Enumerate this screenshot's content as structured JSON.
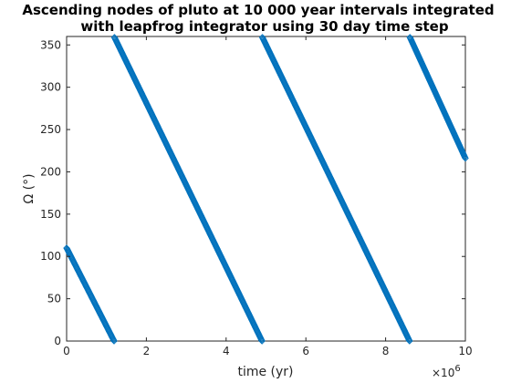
{
  "chart_data": {
    "type": "scatter",
    "title": [
      "Ascending nodes of pluto at 10 000 year intervals integrated",
      "with leapfrog integrator using 30 day time step"
    ],
    "xlabel": "time (yr)",
    "ylabel": "Ω (°)",
    "x_exponent_label": "×10",
    "x_exponent_power": "6",
    "xlim": [
      0,
      10
    ],
    "ylim": [
      0,
      360
    ],
    "xticks": [
      "0",
      "2",
      "4",
      "6",
      "8",
      "10"
    ],
    "yticks": [
      "0",
      "50",
      "100",
      "150",
      "200",
      "250",
      "300",
      "350"
    ],
    "marker": "diamond",
    "marker_color": "#0072BD",
    "x_step": 0.01,
    "series": [
      {
        "x_start": 0.0,
        "y_start": 110,
        "x_end": 1.19,
        "y_end": 0
      },
      {
        "x_start": 1.2,
        "y_start": 359,
        "x_end": 4.9,
        "y_end": 0
      },
      {
        "x_start": 4.91,
        "y_start": 359,
        "x_end": 8.6,
        "y_end": 0
      },
      {
        "x_start": 8.61,
        "y_start": 359,
        "x_end": 10.0,
        "y_end": 216
      }
    ]
  }
}
